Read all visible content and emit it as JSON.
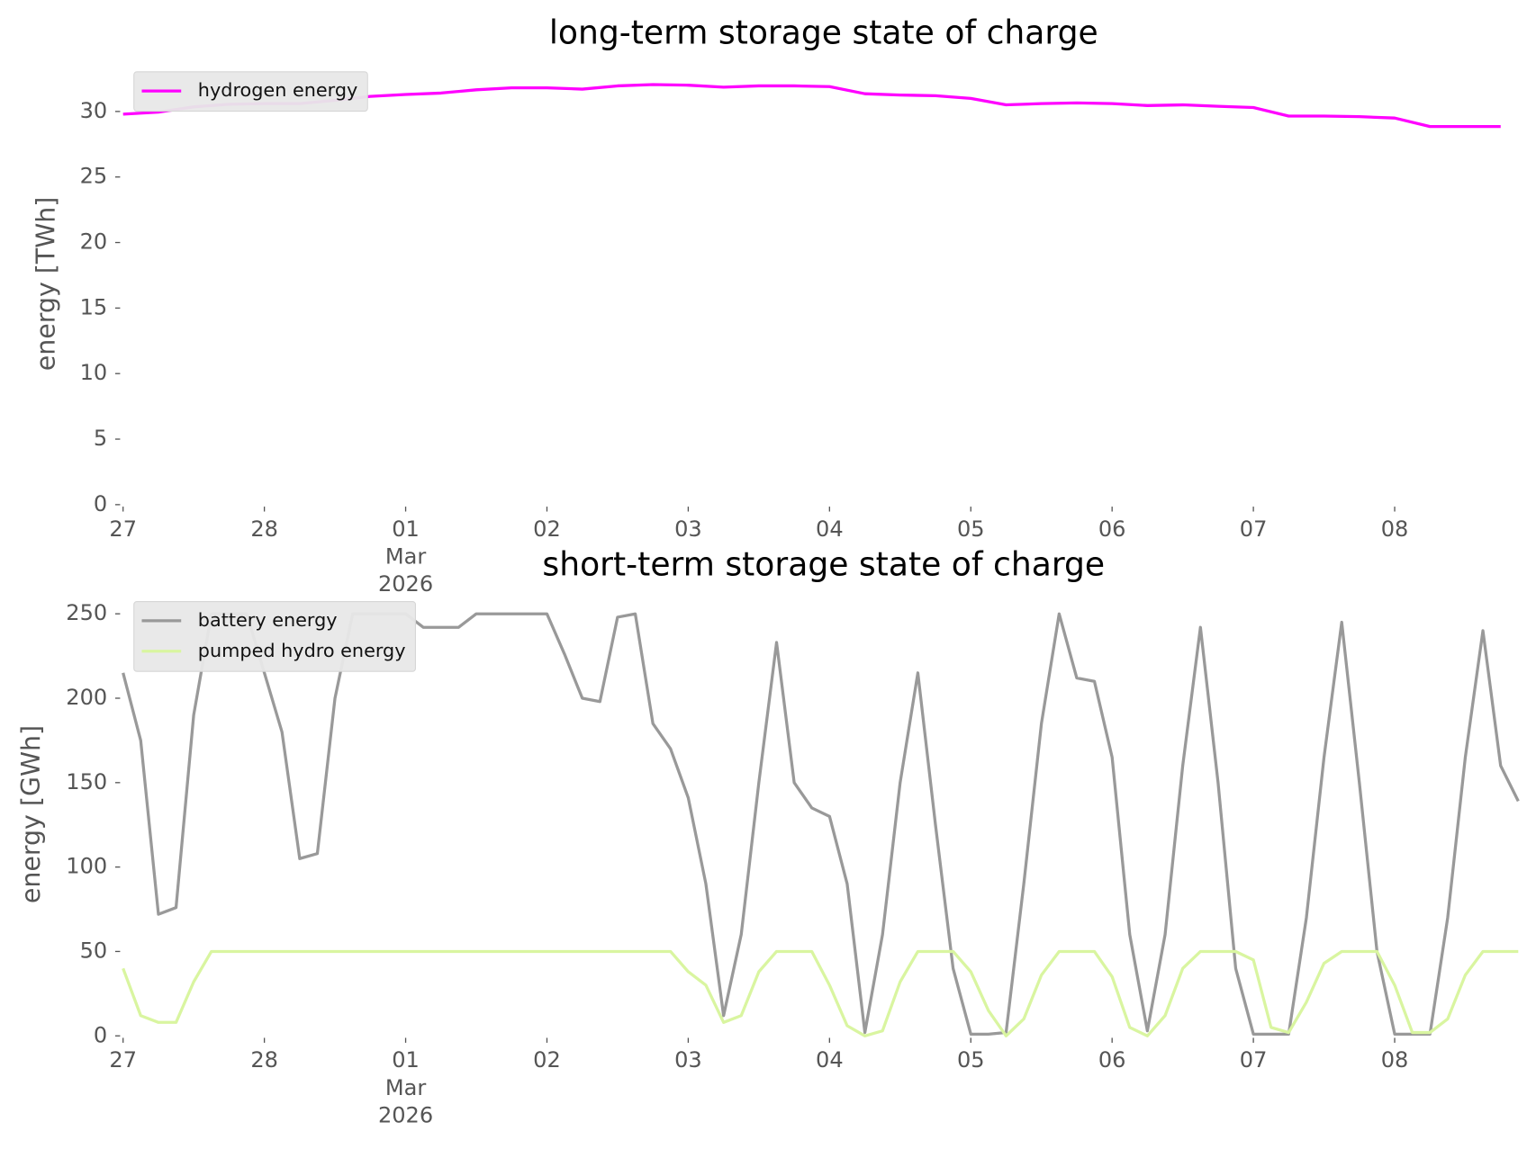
{
  "chart_data": [
    {
      "type": "line",
      "title": "long-term storage state of charge",
      "ylabel": "energy [TWh]",
      "legend": "upper left",
      "grid": false,
      "xlim": [
        "2026-02-27T00:00",
        "2026-03-08T22:00"
      ],
      "xticks": [
        {
          "value": "2026-02-27T00:00",
          "label": "27"
        },
        {
          "value": "2026-02-28T00:00",
          "label": "28"
        },
        {
          "value": "2026-03-01T00:00",
          "label": "01\nMar\n2026"
        },
        {
          "value": "2026-03-02T00:00",
          "label": "02"
        },
        {
          "value": "2026-03-03T00:00",
          "label": "03"
        },
        {
          "value": "2026-03-04T00:00",
          "label": "04"
        },
        {
          "value": "2026-03-05T00:00",
          "label": "05"
        },
        {
          "value": "2026-03-06T00:00",
          "label": "06"
        },
        {
          "value": "2026-03-07T00:00",
          "label": "07"
        },
        {
          "value": "2026-03-08T00:00",
          "label": "08"
        }
      ],
      "ylim": [
        0,
        33.7
      ],
      "yticks": [
        0,
        5,
        10,
        15,
        20,
        25,
        30
      ],
      "x": [
        "2026-02-27T00:00",
        "2026-02-27T06:00",
        "2026-02-27T12:00",
        "2026-02-27T18:00",
        "2026-02-28T00:00",
        "2026-02-28T06:00",
        "2026-02-28T12:00",
        "2026-02-28T18:00",
        "2026-03-01T00:00",
        "2026-03-01T06:00",
        "2026-03-01T12:00",
        "2026-03-01T18:00",
        "2026-03-02T00:00",
        "2026-03-02T06:00",
        "2026-03-02T12:00",
        "2026-03-02T18:00",
        "2026-03-03T00:00",
        "2026-03-03T06:00",
        "2026-03-03T12:00",
        "2026-03-03T18:00",
        "2026-03-04T00:00",
        "2026-03-04T06:00",
        "2026-03-04T12:00",
        "2026-03-04T18:00",
        "2026-03-05T00:00",
        "2026-03-05T06:00",
        "2026-03-05T12:00",
        "2026-03-05T18:00",
        "2026-03-06T00:00",
        "2026-03-06T06:00",
        "2026-03-06T12:00",
        "2026-03-06T18:00",
        "2026-03-07T00:00",
        "2026-03-07T06:00",
        "2026-03-07T12:00",
        "2026-03-07T18:00",
        "2026-03-08T00:00",
        "2026-03-08T06:00",
        "2026-03-08T12:00",
        "2026-03-08T18:00"
      ],
      "series": [
        {
          "name": "hydrogen energy",
          "color": "#ff00ff",
          "values": [
            29.8,
            29.95,
            30.35,
            30.55,
            30.6,
            30.6,
            30.85,
            31.15,
            31.3,
            31.4,
            31.65,
            31.8,
            31.8,
            31.7,
            31.95,
            32.05,
            32.0,
            31.85,
            31.95,
            31.95,
            31.9,
            31.35,
            31.25,
            31.2,
            31.0,
            30.5,
            30.6,
            30.65,
            30.6,
            30.45,
            30.5,
            30.4,
            30.3,
            29.65,
            29.65,
            29.6,
            29.5,
            28.85,
            28.85,
            28.85
          ]
        }
      ]
    },
    {
      "type": "line",
      "title": "short-term storage state of charge",
      "ylabel": "energy [GWh]",
      "legend": "upper left",
      "grid": false,
      "xlim": [
        "2026-02-27T00:00",
        "2026-03-08T22:00"
      ],
      "xticks": [
        {
          "value": "2026-02-27T00:00",
          "label": "27"
        },
        {
          "value": "2026-02-28T00:00",
          "label": "28"
        },
        {
          "value": "2026-03-01T00:00",
          "label": "01\nMar\n2026"
        },
        {
          "value": "2026-03-02T00:00",
          "label": "02"
        },
        {
          "value": "2026-03-03T00:00",
          "label": "03"
        },
        {
          "value": "2026-03-04T00:00",
          "label": "04"
        },
        {
          "value": "2026-03-05T00:00",
          "label": "05"
        },
        {
          "value": "2026-03-06T00:00",
          "label": "06"
        },
        {
          "value": "2026-03-07T00:00",
          "label": "07"
        },
        {
          "value": "2026-03-08T00:00",
          "label": "08"
        }
      ],
      "ylim": [
        0,
        262.5
      ],
      "yticks": [
        0,
        50,
        100,
        150,
        200,
        250
      ],
      "x": [
        "2026-02-27T00:00",
        "2026-02-27T03:00",
        "2026-02-27T06:00",
        "2026-02-27T09:00",
        "2026-02-27T12:00",
        "2026-02-27T15:00",
        "2026-02-27T18:00",
        "2026-02-27T21:00",
        "2026-02-28T00:00",
        "2026-02-28T03:00",
        "2026-02-28T06:00",
        "2026-02-28T09:00",
        "2026-02-28T12:00",
        "2026-02-28T15:00",
        "2026-02-28T18:00",
        "2026-02-28T21:00",
        "2026-03-01T00:00",
        "2026-03-01T03:00",
        "2026-03-01T06:00",
        "2026-03-01T09:00",
        "2026-03-01T12:00",
        "2026-03-01T15:00",
        "2026-03-01T18:00",
        "2026-03-01T21:00",
        "2026-03-02T00:00",
        "2026-03-02T03:00",
        "2026-03-02T06:00",
        "2026-03-02T09:00",
        "2026-03-02T12:00",
        "2026-03-02T15:00",
        "2026-03-02T18:00",
        "2026-03-02T21:00",
        "2026-03-03T00:00",
        "2026-03-03T03:00",
        "2026-03-03T06:00",
        "2026-03-03T09:00",
        "2026-03-03T12:00",
        "2026-03-03T15:00",
        "2026-03-03T18:00",
        "2026-03-03T21:00",
        "2026-03-04T00:00",
        "2026-03-04T03:00",
        "2026-03-04T06:00",
        "2026-03-04T09:00",
        "2026-03-04T12:00",
        "2026-03-04T15:00",
        "2026-03-04T18:00",
        "2026-03-04T21:00",
        "2026-03-05T00:00",
        "2026-03-05T03:00",
        "2026-03-05T06:00",
        "2026-03-05T09:00",
        "2026-03-05T12:00",
        "2026-03-05T15:00",
        "2026-03-05T18:00",
        "2026-03-05T21:00",
        "2026-03-06T00:00",
        "2026-03-06T03:00",
        "2026-03-06T06:00",
        "2026-03-06T09:00",
        "2026-03-06T12:00",
        "2026-03-06T15:00",
        "2026-03-06T18:00",
        "2026-03-06T21:00",
        "2026-03-07T00:00",
        "2026-03-07T03:00",
        "2026-03-07T06:00",
        "2026-03-07T09:00",
        "2026-03-07T12:00",
        "2026-03-07T15:00",
        "2026-03-07T18:00",
        "2026-03-07T21:00",
        "2026-03-08T00:00",
        "2026-03-08T03:00",
        "2026-03-08T06:00",
        "2026-03-08T09:00",
        "2026-03-08T12:00",
        "2026-03-08T15:00",
        "2026-03-08T18:00",
        "2026-03-08T21:00"
      ],
      "series": [
        {
          "name": "battery energy",
          "color": "#999999",
          "values": [
            215,
            175,
            72,
            76,
            190,
            250,
            250,
            250,
            215,
            180,
            105,
            108,
            200,
            250,
            250,
            250,
            250,
            242,
            242,
            242,
            250,
            250,
            250,
            250,
            250,
            226,
            200,
            198,
            248,
            250,
            185,
            170,
            141,
            90,
            12,
            60,
            150,
            233,
            150,
            135,
            130,
            90,
            2,
            60,
            150,
            215,
            125,
            40,
            1,
            1,
            2,
            90,
            185,
            250,
            212,
            210,
            165,
            60,
            3,
            60,
            160,
            242,
            150,
            40,
            1,
            1,
            1,
            70,
            165,
            245,
            150,
            50,
            1,
            1,
            1,
            70,
            165,
            240,
            160,
            139
          ]
        },
        {
          "name": "pumped hydro energy",
          "color": "#d9f5a0",
          "values": [
            40,
            12,
            8,
            8,
            32,
            50,
            50,
            50,
            50,
            50,
            50,
            50,
            50,
            50,
            50,
            50,
            50,
            50,
            50,
            50,
            50,
            50,
            50,
            50,
            50,
            50,
            50,
            50,
            50,
            50,
            50,
            50,
            38,
            30,
            8,
            12,
            38,
            50,
            50,
            50,
            30,
            6,
            0,
            3,
            32,
            50,
            50,
            50,
            38,
            15,
            0,
            10,
            36,
            50,
            50,
            50,
            35,
            5,
            0,
            12,
            40,
            50,
            50,
            50,
            45,
            5,
            2,
            20,
            43,
            50,
            50,
            50,
            30,
            2,
            2,
            10,
            36,
            50,
            50,
            50
          ]
        }
      ]
    }
  ]
}
